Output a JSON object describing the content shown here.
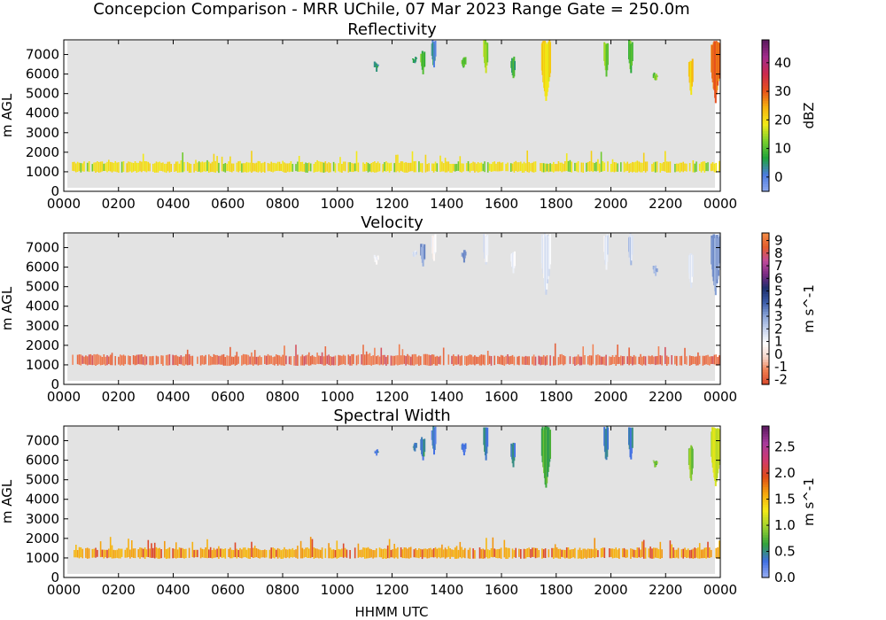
{
  "figure": {
    "title": "Concepcion Comparison - MRR UChile, 07 Mar 2023 Range Gate = 250.0m",
    "xlabel": "HHMM UTC",
    "ylabel": "m AGL"
  },
  "colors": {
    "axes_background": "#e3e3e3",
    "reflectivity_scale": [
      "#8fa9ee",
      "#4c7ce0",
      "#1fa43b",
      "#7ad02c",
      "#f2ea17",
      "#f6b30f",
      "#e8521a",
      "#cc2a4e",
      "#a32b8c",
      "#5a1a5e"
    ],
    "velocity_scale": [
      "#d8472b",
      "#ef7b4d",
      "#f7d6c9",
      "#ffffff",
      "#c9d5ee",
      "#8aa4d8",
      "#3c5ca8",
      "#1d2f6d",
      "#7a2b84",
      "#c04c9a",
      "#e55d2d",
      "#f28b45"
    ],
    "width_scale": [
      "#9bb0f4",
      "#3f6ee2",
      "#30a33c",
      "#9bd12f",
      "#f5ea16",
      "#f6a80e",
      "#e04c17",
      "#d03a6f",
      "#a83b9d",
      "#5b1a5f"
    ]
  },
  "chart_data": [
    {
      "type": "heatmap",
      "title": "Reflectivity",
      "xlabel": "",
      "ylabel": "m AGL",
      "colorbar_label": "dBZ",
      "colorbar_range": [
        -5,
        48
      ],
      "colorbar_ticks": [
        "0",
        "10",
        "20",
        "30",
        "40"
      ],
      "xlim": [
        0,
        2400
      ],
      "ylim": [
        0,
        7750
      ],
      "xticks": [
        "0000",
        "0200",
        "0400",
        "0600",
        "0800",
        "1000",
        "1200",
        "1400",
        "1600",
        "1800",
        "2000",
        "2200",
        "0000"
      ],
      "yticks": [
        "0",
        "1000",
        "2000",
        "3000",
        "4000",
        "5000",
        "6000",
        "7000"
      ],
      "low_layer": {
        "base_m": 1000,
        "top_m": 1400,
        "typical_value": 20,
        "edge_value": 12
      },
      "echoes": [
        {
          "time": 1140,
          "base_m": 6100,
          "top_m": 6650,
          "value": 5
        },
        {
          "time": 1280,
          "base_m": 6400,
          "top_m": 6900,
          "value": 5
        },
        {
          "time": 1310,
          "base_m": 5900,
          "top_m": 7200,
          "value": 10
        },
        {
          "time": 1350,
          "base_m": 6200,
          "top_m": 7750,
          "value": 3
        },
        {
          "time": 1460,
          "base_m": 6200,
          "top_m": 6900,
          "value": 10
        },
        {
          "time": 1540,
          "base_m": 5900,
          "top_m": 7750,
          "value": 14
        },
        {
          "time": 1640,
          "base_m": 5600,
          "top_m": 6900,
          "value": 8
        },
        {
          "time": 1760,
          "base_m": 4500,
          "top_m": 7750,
          "value": 20
        },
        {
          "time": 1980,
          "base_m": 5800,
          "top_m": 7750,
          "value": 13
        },
        {
          "time": 2070,
          "base_m": 5900,
          "top_m": 7750,
          "value": 10
        },
        {
          "time": 2160,
          "base_m": 5500,
          "top_m": 6100,
          "value": 12
        },
        {
          "time": 2290,
          "base_m": 4800,
          "top_m": 6800,
          "value": 22
        },
        {
          "time": 2380,
          "base_m": 4500,
          "top_m": 7700,
          "value": 28
        }
      ]
    },
    {
      "type": "heatmap",
      "title": "Velocity",
      "xlabel": "",
      "ylabel": "m AGL",
      "colorbar_label": "m s^-1",
      "colorbar_range": [
        -2.4,
        9.6
      ],
      "colorbar_ticks": [
        "-2",
        "-1",
        "0",
        "1",
        "2",
        "3",
        "4",
        "5",
        "6",
        "7",
        "8",
        "9"
      ],
      "xlim": [
        0,
        2400
      ],
      "ylim": [
        0,
        7750
      ],
      "xticks": [
        "0000",
        "0200",
        "0400",
        "0600",
        "0800",
        "1000",
        "1200",
        "1400",
        "1600",
        "1800",
        "2000",
        "2200",
        "0000"
      ],
      "yticks": [
        "0",
        "1000",
        "2000",
        "3000",
        "4000",
        "5000",
        "6000",
        "7000"
      ],
      "low_layer": {
        "base_m": 1000,
        "top_m": 1400,
        "typical_value": -1.5,
        "edge_value": 8.0
      },
      "echoes": [
        {
          "time": 1140,
          "base_m": 6100,
          "top_m": 6650,
          "value": 1.2
        },
        {
          "time": 1280,
          "base_m": 6400,
          "top_m": 6900,
          "value": 1.5
        },
        {
          "time": 1310,
          "base_m": 5900,
          "top_m": 7200,
          "value": 3.2
        },
        {
          "time": 1350,
          "base_m": 6200,
          "top_m": 7750,
          "value": 1.0
        },
        {
          "time": 1460,
          "base_m": 6200,
          "top_m": 6900,
          "value": 3.5
        },
        {
          "time": 1540,
          "base_m": 5900,
          "top_m": 7750,
          "value": 1.3
        },
        {
          "time": 1640,
          "base_m": 5600,
          "top_m": 6900,
          "value": 1.0
        },
        {
          "time": 1760,
          "base_m": 4500,
          "top_m": 7750,
          "value": 1.4
        },
        {
          "time": 1980,
          "base_m": 5800,
          "top_m": 7750,
          "value": 1.2
        },
        {
          "time": 2070,
          "base_m": 5900,
          "top_m": 7750,
          "value": 2.0
        },
        {
          "time": 2160,
          "base_m": 5500,
          "top_m": 6100,
          "value": 2.5
        },
        {
          "time": 2290,
          "base_m": 4800,
          "top_m": 6800,
          "value": 1.2
        },
        {
          "time": 2380,
          "base_m": 4500,
          "top_m": 7700,
          "value": 3.0
        }
      ]
    },
    {
      "type": "heatmap",
      "title": "Spectral Width",
      "xlabel": "HHMM UTC",
      "ylabel": "m AGL",
      "colorbar_label": "m s^-1",
      "colorbar_range": [
        0,
        2.9
      ],
      "colorbar_ticks": [
        "0.0",
        "0.5",
        "1.0",
        "1.5",
        "2.0",
        "2.5"
      ],
      "xlim": [
        0,
        2400
      ],
      "ylim": [
        0,
        7750
      ],
      "xticks": [
        "0000",
        "0200",
        "0400",
        "0600",
        "0800",
        "1000",
        "1200",
        "1400",
        "1600",
        "1800",
        "2000",
        "2200",
        "0000"
      ],
      "yticks": [
        "0",
        "1000",
        "2000",
        "3000",
        "4000",
        "5000",
        "6000",
        "7000"
      ],
      "low_layer": {
        "base_m": 1000,
        "top_m": 1400,
        "typical_value": 1.6,
        "edge_value": 2.0
      },
      "echoes": [
        {
          "time": 1140,
          "base_m": 6100,
          "top_m": 6650,
          "value": 0.4
        },
        {
          "time": 1280,
          "base_m": 6400,
          "top_m": 6900,
          "value": 0.4
        },
        {
          "time": 1310,
          "base_m": 5900,
          "top_m": 7200,
          "value": 0.45
        },
        {
          "time": 1350,
          "base_m": 6200,
          "top_m": 7750,
          "value": 0.35
        },
        {
          "time": 1460,
          "base_m": 6200,
          "top_m": 6900,
          "value": 0.4
        },
        {
          "time": 1540,
          "base_m": 5900,
          "top_m": 7750,
          "value": 0.45
        },
        {
          "time": 1640,
          "base_m": 5600,
          "top_m": 6900,
          "value": 0.4
        },
        {
          "time": 1760,
          "base_m": 4500,
          "top_m": 7750,
          "value": 0.7
        },
        {
          "time": 1980,
          "base_m": 5800,
          "top_m": 7750,
          "value": 0.45
        },
        {
          "time": 2070,
          "base_m": 5900,
          "top_m": 7750,
          "value": 0.4
        },
        {
          "time": 2160,
          "base_m": 5500,
          "top_m": 6100,
          "value": 0.8
        },
        {
          "time": 2290,
          "base_m": 4800,
          "top_m": 6800,
          "value": 0.9
        },
        {
          "time": 2380,
          "base_m": 4500,
          "top_m": 7700,
          "value": 1.1
        }
      ]
    }
  ]
}
